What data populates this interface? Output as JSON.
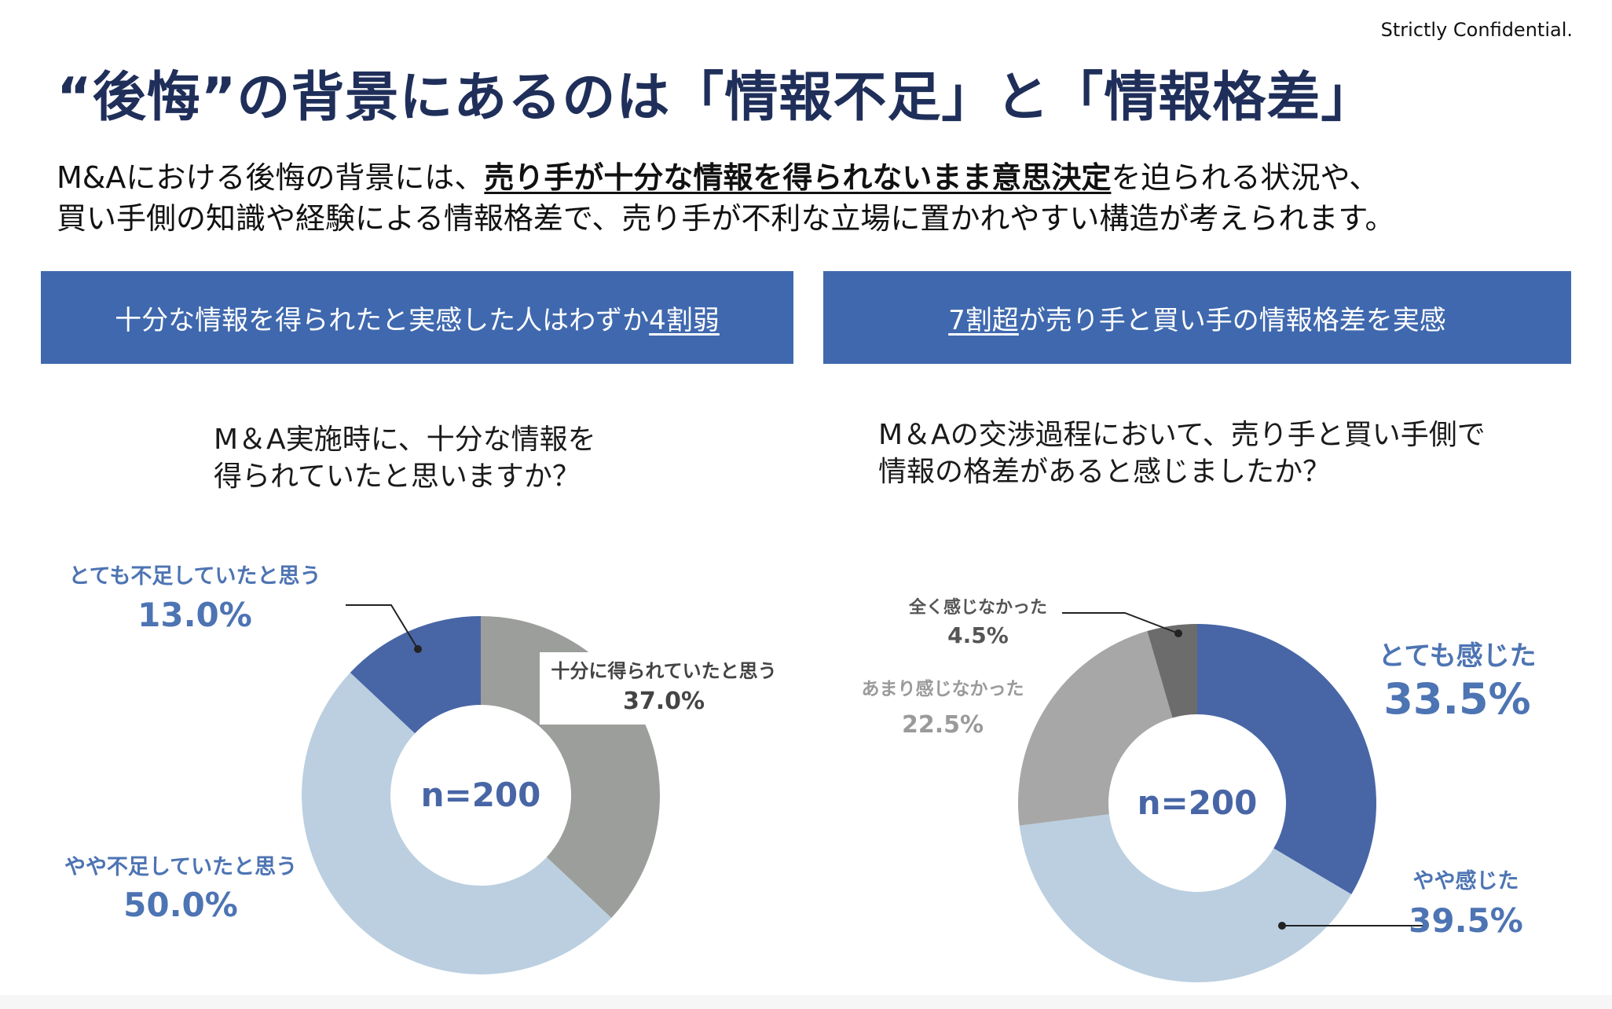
{
  "confidential": "Strictly Confidential.",
  "title": "“後悔”の背景にあるのは「情報不足」と「情報格差」",
  "lead": {
    "text1": "M&Aにおける後悔の背景には、",
    "bold": "売り手が十分な情報を得られないまま意思決定",
    "text2": "を迫られる状況や、",
    "line2": "買い手側の知識や経験による情報格差で、売り手が不利な立場に置かれやすい構造が考えられます。"
  },
  "panels": {
    "left": {
      "pre": "十分な情報を得られたと実感した人はわずか",
      "em": "4割弱"
    },
    "right": {
      "em": "7割超",
      "post": "が売り手と買い手の情報格差を実感"
    }
  },
  "chart_data": [
    {
      "type": "pie",
      "question": "M＆A実施時に、十分な情報を\n得られていたと思いますか？",
      "center_label": "n=200",
      "slices": [
        {
          "label": "十分に得られていたと思う",
          "value": 37.0,
          "value_text": "37.0%",
          "color": "#9c9e9b",
          "label_color": "#444444"
        },
        {
          "label": "やや不足していたと思う",
          "value": 50.0,
          "value_text": "50.0%",
          "color": "#bbcfe0",
          "label_color": "#4d74b3"
        },
        {
          "label": "とても不足していたと思う",
          "value": 13.0,
          "value_text": "13.0%",
          "color": "#4866a6",
          "label_color": "#4d74b3"
        }
      ]
    },
    {
      "type": "pie",
      "question": "M＆Aの交渉過程において、売り手と買い手側で\n情報の格差があると感じましたか？",
      "center_label": "n=200",
      "slices": [
        {
          "label": "とても感じた",
          "value": 33.5,
          "value_text": "33.5%",
          "color": "#4866a6",
          "label_color": "#4d74b3"
        },
        {
          "label": "やや感じた",
          "value": 39.5,
          "value_text": "39.5%",
          "color": "#bbcfe0",
          "label_color": "#4d74b3"
        },
        {
          "label": "あまり感じなかった",
          "value": 22.5,
          "value_text": "22.5%",
          "color": "#a7a7a7",
          "label_color": "#9a9a9a"
        },
        {
          "label": "全く感じなかった",
          "value": 4.5,
          "value_text": "4.5%",
          "color": "#6c6c6c",
          "label_color": "#555555"
        }
      ]
    }
  ]
}
